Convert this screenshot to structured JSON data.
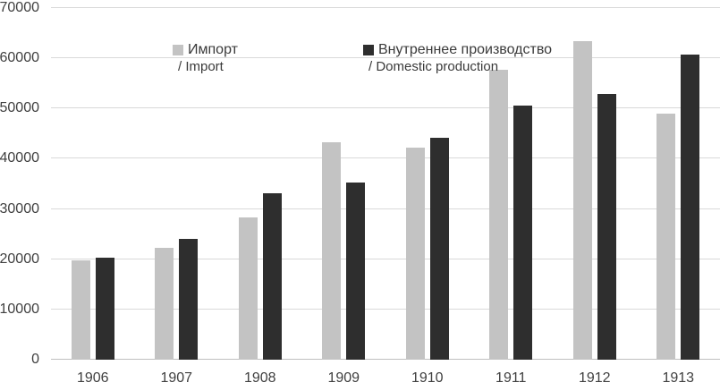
{
  "chart_data": {
    "type": "bar",
    "title": "",
    "categories": [
      "1906",
      "1907",
      "1908",
      "1909",
      "1910",
      "1911",
      "1912",
      "1913"
    ],
    "series": [
      {
        "key": "import",
        "name": "Импорт",
        "subname": "/ Import",
        "color": "#c3c3c3",
        "values": [
          19800,
          22200,
          28400,
          43300,
          42300,
          57800,
          63500,
          48900
        ]
      },
      {
        "key": "domestic",
        "name": "Внутреннее производство",
        "subname": "/ Domestic production",
        "color": "#2e2e2e",
        "values": [
          20300,
          24100,
          33100,
          35200,
          44200,
          50500,
          52900,
          60700
        ]
      }
    ],
    "xlabel": "",
    "ylabel": "",
    "ylim": [
      0,
      70000
    ],
    "ytick_step": 10000,
    "yticks": [
      0,
      10000,
      20000,
      30000,
      40000,
      50000,
      60000,
      70000
    ],
    "grid": true,
    "legend_position": "inside-top",
    "gridline_color": "#d9d9d9",
    "axis_line_color": "#bfbfbf",
    "label_color": "#404040"
  }
}
